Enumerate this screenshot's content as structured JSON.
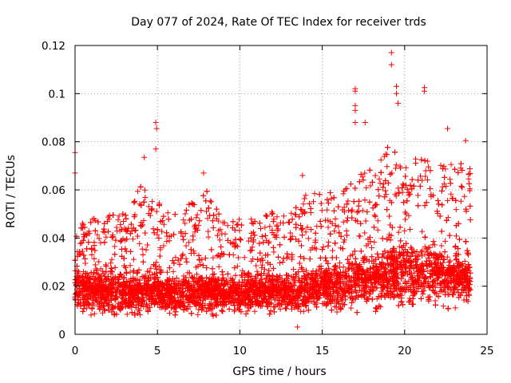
{
  "chart_data": {
    "type": "scatter",
    "title": "Day 077 of 2024, Rate Of TEC Index for receiver trds",
    "xlabel": "GPS time / hours",
    "ylabel": "ROTI / TECUs",
    "xlim": [
      0,
      25
    ],
    "ylim": [
      0,
      0.12
    ],
    "xticks": [
      0,
      5,
      10,
      15,
      20,
      25
    ],
    "xtick_labels": [
      "0",
      "5",
      "10",
      "15",
      "20",
      "25"
    ],
    "yticks": [
      0,
      0.02,
      0.04,
      0.06,
      0.08,
      0.1,
      0.12
    ],
    "ytick_labels": [
      "0",
      "0.02",
      "0.04",
      "0.06",
      "0.08",
      "0.1",
      "0.12"
    ],
    "grid": true,
    "marker": "+",
    "color": "#ff0000",
    "series": [
      {
        "name": "ROTI",
        "envelope": {
          "x": [
            0,
            1,
            2,
            3,
            4,
            5,
            6,
            7,
            8,
            9,
            10,
            11,
            12,
            13,
            14,
            15,
            16,
            17,
            18,
            19,
            20,
            21,
            22,
            23,
            24
          ],
          "low": [
            0.008,
            0.006,
            0.005,
            0.005,
            0.006,
            0.006,
            0.006,
            0.006,
            0.006,
            0.006,
            0.006,
            0.007,
            0.007,
            0.006,
            0.007,
            0.007,
            0.007,
            0.007,
            0.008,
            0.008,
            0.007,
            0.008,
            0.008,
            0.008,
            0.008
          ],
          "typical": [
            0.02,
            0.019,
            0.018,
            0.017,
            0.018,
            0.018,
            0.017,
            0.018,
            0.018,
            0.017,
            0.017,
            0.018,
            0.018,
            0.018,
            0.019,
            0.02,
            0.021,
            0.022,
            0.023,
            0.025,
            0.026,
            0.026,
            0.025,
            0.024,
            0.022
          ],
          "high": [
            0.045,
            0.048,
            0.05,
            0.05,
            0.065,
            0.055,
            0.05,
            0.055,
            0.06,
            0.048,
            0.048,
            0.048,
            0.052,
            0.05,
            0.058,
            0.06,
            0.058,
            0.065,
            0.07,
            0.08,
            0.07,
            0.075,
            0.07,
            0.072,
            0.07
          ]
        },
        "notable_points": [
          {
            "x": 0.0,
            "y": 0.0755
          },
          {
            "x": 0.0,
            "y": 0.067
          },
          {
            "x": 4.9,
            "y": 0.088
          },
          {
            "x": 4.95,
            "y": 0.0855
          },
          {
            "x": 4.9,
            "y": 0.077
          },
          {
            "x": 4.2,
            "y": 0.0735
          },
          {
            "x": 7.8,
            "y": 0.067
          },
          {
            "x": 13.8,
            "y": 0.066
          },
          {
            "x": 17.0,
            "y": 0.102
          },
          {
            "x": 17.0,
            "y": 0.101
          },
          {
            "x": 17.0,
            "y": 0.095
          },
          {
            "x": 17.0,
            "y": 0.093
          },
          {
            "x": 17.0,
            "y": 0.088
          },
          {
            "x": 17.6,
            "y": 0.088
          },
          {
            "x": 19.2,
            "y": 0.117
          },
          {
            "x": 19.2,
            "y": 0.112
          },
          {
            "x": 19.5,
            "y": 0.103
          },
          {
            "x": 19.5,
            "y": 0.1
          },
          {
            "x": 19.6,
            "y": 0.096
          },
          {
            "x": 21.2,
            "y": 0.1025
          },
          {
            "x": 21.2,
            "y": 0.101
          },
          {
            "x": 22.6,
            "y": 0.0855
          },
          {
            "x": 23.7,
            "y": 0.0805
          },
          {
            "x": 13.5,
            "y": 0.003
          }
        ]
      }
    ]
  }
}
